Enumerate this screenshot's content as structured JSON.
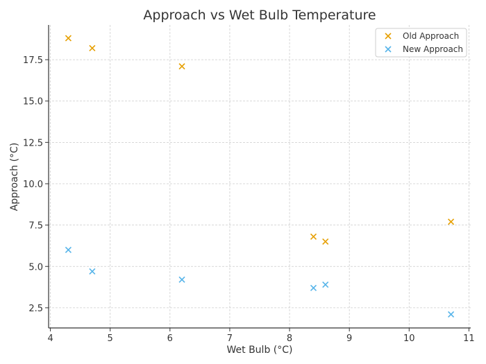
{
  "chart_data": {
    "type": "scatter",
    "title": "Approach vs Wet Bulb Temperature",
    "xlabel": "Wet Bulb (°C)",
    "ylabel": "Approach (°C)",
    "xlim": [
      3.97,
      11.03
    ],
    "ylim": [
      1.28,
      19.6
    ],
    "xticks": [
      4,
      5,
      6,
      7,
      8,
      9,
      10,
      11
    ],
    "yticks": [
      2.5,
      5.0,
      7.5,
      10.0,
      12.5,
      15.0,
      17.5
    ],
    "ytick_labels": [
      "2.5",
      "5.0",
      "7.5",
      "10.0",
      "12.5",
      "15.0",
      "17.5"
    ],
    "grid": true,
    "legend_position": "top-right",
    "marker": "x",
    "series": [
      {
        "name": "Old Approach",
        "color": "#E69F00",
        "x": [
          4.3,
          4.7,
          6.2,
          8.4,
          8.6,
          10.7
        ],
        "y": [
          18.8,
          18.2,
          17.1,
          6.8,
          6.5,
          7.7
        ]
      },
      {
        "name": "New Approach",
        "color": "#56B4E9",
        "x": [
          4.3,
          4.7,
          6.2,
          8.4,
          8.6,
          10.7
        ],
        "y": [
          6.0,
          4.7,
          4.2,
          3.7,
          3.9,
          2.1
        ]
      }
    ]
  }
}
